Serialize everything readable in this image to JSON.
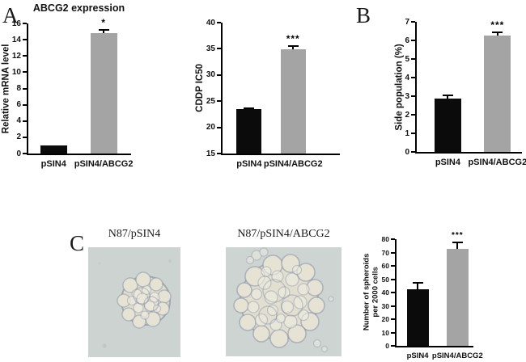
{
  "figure": {
    "panel_a_label": "A",
    "panel_b_label": "B",
    "panel_c_label": "C"
  },
  "micrographs": [
    {
      "label": "N87/pSIN4"
    },
    {
      "label": "N87/pSIN4/ABCG2"
    }
  ],
  "colors": {
    "black_bar": "#0b0b0b",
    "gray_bar": "#a4a4a4",
    "axis": "#000000",
    "micrograph_bg_left": "#cdd3d1",
    "micrograph_bg_right": "#cdd4d2"
  },
  "chart_data": [
    {
      "id": "mrna",
      "type": "bar",
      "title": "ABCG2 expression",
      "ylabel": "Relative mRNA level",
      "xlabel": "",
      "categories": [
        "pSIN4",
        "pSIN4/ABCG2"
      ],
      "values": [
        1.0,
        14.8
      ],
      "errors": [
        0,
        0.4
      ],
      "significance": [
        "",
        "*"
      ],
      "ylim": [
        0,
        16
      ],
      "ytick_step": 2,
      "bar_colors": [
        "#0b0b0b",
        "#a4a4a4"
      ],
      "grid": false,
      "legend": "none"
    },
    {
      "id": "ic50",
      "type": "bar",
      "title": "",
      "ylabel": "CDDP IC50",
      "xlabel": "",
      "categories": [
        "pSIN4",
        "pSIN4/ABCG2"
      ],
      "values": [
        23.5,
        34.9
      ],
      "errors": [
        0.2,
        0.7
      ],
      "significance": [
        "",
        "***"
      ],
      "ylim": [
        15,
        40
      ],
      "ytick_step": 5,
      "bar_colors": [
        "#0b0b0b",
        "#a4a4a4"
      ],
      "grid": false,
      "legend": "none"
    },
    {
      "id": "side",
      "type": "bar",
      "title": "",
      "ylabel": "Side population (%)",
      "xlabel": "",
      "categories": [
        "pSIN4",
        "pSIN4/ABCG2"
      ],
      "values": [
        2.85,
        6.25
      ],
      "errors": [
        0.2,
        0.2
      ],
      "significance": [
        "",
        "***"
      ],
      "ylim": [
        0,
        7
      ],
      "ytick_step": 1,
      "bar_colors": [
        "#0b0b0b",
        "#a4a4a4"
      ],
      "grid": false,
      "legend": "none"
    },
    {
      "id": "spheroids",
      "type": "bar",
      "title": "",
      "ylabel": "Number of spheroids\nper 2000 cells",
      "xlabel": "",
      "categories": [
        "pSIN4",
        "pSIN4/ABCG2"
      ],
      "values": [
        42.5,
        73
      ],
      "errors": [
        4.5,
        4.5
      ],
      "significance": [
        "",
        "***"
      ],
      "ylim": [
        0,
        80
      ],
      "ytick_step": 10,
      "bar_colors": [
        "#0b0b0b",
        "#a4a4a4"
      ],
      "grid": false,
      "legend": "none"
    }
  ]
}
